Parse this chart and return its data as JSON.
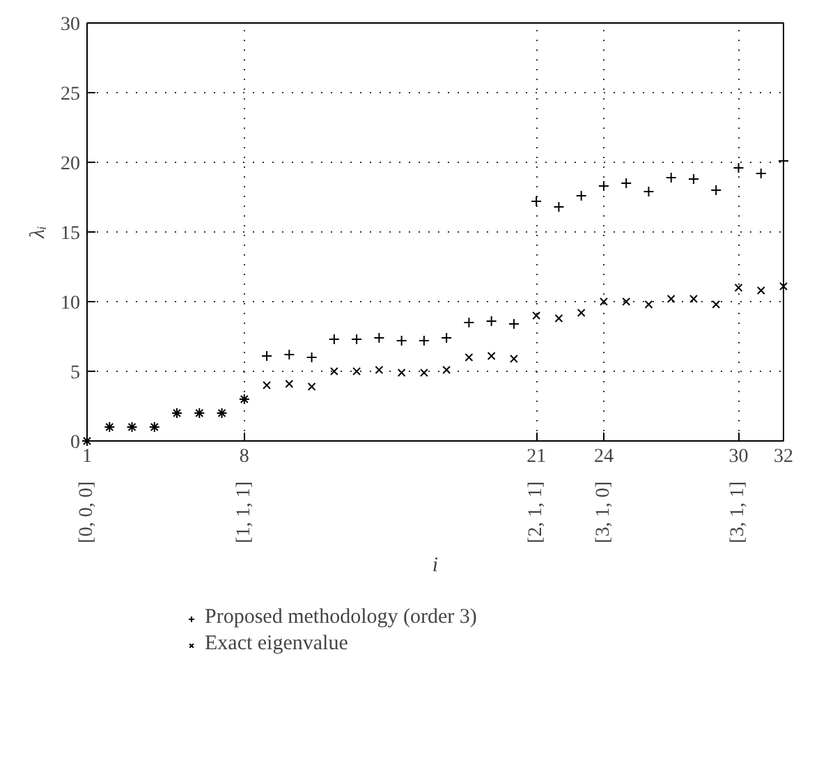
{
  "chart_data": {
    "type": "scatter",
    "xlabel": "i",
    "ylabel": "λᵢ",
    "xlim": [
      1,
      32
    ],
    "ylim": [
      0,
      30
    ],
    "xticks": [
      1,
      8,
      21,
      24,
      30,
      32
    ],
    "yticks": [
      0,
      5,
      10,
      15,
      20,
      25,
      30
    ],
    "x": [
      1,
      2,
      3,
      4,
      5,
      6,
      7,
      8,
      9,
      10,
      11,
      12,
      13,
      14,
      15,
      16,
      17,
      18,
      19,
      20,
      21,
      22,
      23,
      24,
      25,
      26,
      27,
      28,
      29,
      30,
      31,
      32
    ],
    "series": [
      {
        "name": "Proposed methodology (order 3)",
        "color": "#000000",
        "marker": "cross",
        "values": [
          0,
          1,
          1,
          1,
          2,
          2,
          2,
          3,
          6.1,
          6.2,
          6,
          7.3,
          7.3,
          7.4,
          7.2,
          7.2,
          7.4,
          8.5,
          8.6,
          8.4,
          17.2,
          16.8,
          17.6,
          18.3,
          18.5,
          17.9,
          18.9,
          18.8,
          18.0,
          19.6,
          19.2,
          20.1
        ]
      },
      {
        "name": "Exact eigenvalue",
        "color": "#000000",
        "marker": "x",
        "values": [
          0,
          1,
          1,
          1,
          2,
          2,
          2,
          3,
          4,
          4.1,
          3.9,
          5,
          5,
          5.1,
          4.9,
          4.9,
          5.1,
          6,
          6.1,
          5.9,
          9,
          8.8,
          9.2,
          10,
          10,
          9.8,
          10.2,
          10.2,
          9.8,
          11,
          10.8,
          11.1
        ]
      }
    ],
    "annotations": [
      "[0, 0, 0]",
      "[1, 1, 1]",
      "[2, 1, 1]",
      "[3, 1, 0]",
      "[3, 1, 1]"
    ],
    "grid": true,
    "legend": "bottom"
  }
}
